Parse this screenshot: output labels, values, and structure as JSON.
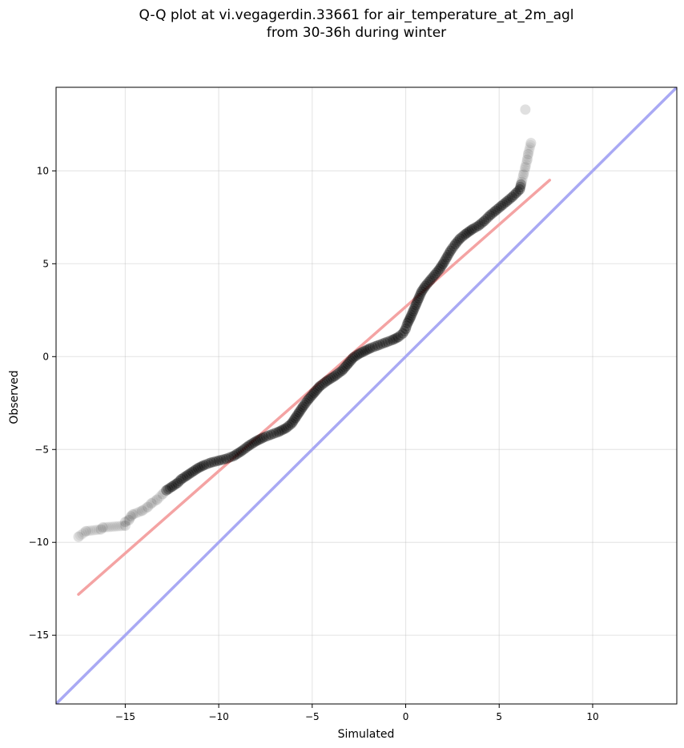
{
  "title_line1": "Q-Q plot at vi.vegagerdin.33661 for air_temperature_at_2m_agl",
  "title_line2": "from 30-36h during winter",
  "chart_data": {
    "type": "scatter",
    "title": "Q-Q plot at vi.vegagerdin.33661 for air_temperature_at_2m_agl\nfrom 30-36h during winter",
    "xlabel": "Simulated",
    "ylabel": "Observed",
    "xlim": [
      -18.7,
      14.5
    ],
    "ylim": [
      -18.7,
      14.5
    ],
    "xticks": [
      -15,
      -10,
      -5,
      0,
      5,
      10
    ],
    "yticks": [
      10,
      5,
      0,
      -5,
      -10,
      -15
    ],
    "xtick_labels": [
      "−15",
      "−10",
      "−5",
      "0",
      "5",
      "10"
    ],
    "ytick_labels": [
      "10",
      "5",
      "0",
      "−5",
      "−10",
      "−15"
    ],
    "grid": true,
    "series": [
      {
        "points": [
          [
            -17.5,
            -9.7
          ],
          [
            -17.1,
            -9.4
          ],
          [
            -16.3,
            -9.3
          ],
          [
            -16.2,
            -9.2
          ],
          [
            -15.0,
            -9.1
          ],
          [
            -15.0,
            -8.9
          ],
          [
            -14.8,
            -8.8
          ],
          [
            -14.7,
            -8.6
          ],
          [
            -14.6,
            -8.5
          ],
          [
            -14.1,
            -8.3
          ],
          [
            -13.8,
            -8.1
          ],
          [
            -13.6,
            -7.9
          ],
          [
            -13.3,
            -7.7
          ],
          [
            -13.0,
            -7.4
          ],
          [
            -12.8,
            -7.2
          ],
          [
            -12.5,
            -7.0
          ],
          [
            -12.2,
            -6.8
          ],
          [
            -12.0,
            -6.6
          ],
          [
            -11.7,
            -6.4
          ],
          [
            -11.4,
            -6.2
          ],
          [
            -11.1,
            -6.0
          ],
          [
            -10.8,
            -5.85
          ],
          [
            -10.4,
            -5.7
          ],
          [
            -10.0,
            -5.6
          ],
          [
            -9.6,
            -5.5
          ],
          [
            -9.2,
            -5.35
          ],
          [
            -8.8,
            -5.1
          ],
          [
            -8.4,
            -4.8
          ],
          [
            -8.0,
            -4.55
          ],
          [
            -7.6,
            -4.35
          ],
          [
            -7.2,
            -4.2
          ],
          [
            -6.8,
            -4.05
          ],
          [
            -6.4,
            -3.85
          ],
          [
            -6.1,
            -3.6
          ],
          [
            -5.9,
            -3.3
          ],
          [
            -5.7,
            -3.0
          ],
          [
            -5.5,
            -2.7
          ],
          [
            -5.2,
            -2.3
          ],
          [
            -4.9,
            -1.95
          ],
          [
            -4.6,
            -1.6
          ],
          [
            -4.2,
            -1.3
          ],
          [
            -3.8,
            -1.05
          ],
          [
            -3.4,
            -0.75
          ],
          [
            -3.1,
            -0.4
          ],
          [
            -2.8,
            -0.05
          ],
          [
            -2.5,
            0.15
          ],
          [
            -2.2,
            0.3
          ],
          [
            -1.9,
            0.45
          ],
          [
            -1.5,
            0.6
          ],
          [
            -1.1,
            0.75
          ],
          [
            -0.7,
            0.9
          ],
          [
            -0.4,
            1.05
          ],
          [
            -0.15,
            1.25
          ],
          [
            0.0,
            1.5
          ],
          [
            0.1,
            1.8
          ],
          [
            0.25,
            2.1
          ],
          [
            0.4,
            2.45
          ],
          [
            0.55,
            2.8
          ],
          [
            0.7,
            3.15
          ],
          [
            0.85,
            3.5
          ],
          [
            1.05,
            3.8
          ],
          [
            1.3,
            4.1
          ],
          [
            1.55,
            4.4
          ],
          [
            1.8,
            4.7
          ],
          [
            2.0,
            5.0
          ],
          [
            2.2,
            5.35
          ],
          [
            2.4,
            5.7
          ],
          [
            2.65,
            6.05
          ],
          [
            2.9,
            6.35
          ],
          [
            3.2,
            6.6
          ],
          [
            3.55,
            6.85
          ],
          [
            3.9,
            7.05
          ],
          [
            4.2,
            7.3
          ],
          [
            4.5,
            7.6
          ],
          [
            4.8,
            7.85
          ],
          [
            5.1,
            8.1
          ],
          [
            5.4,
            8.35
          ],
          [
            5.7,
            8.6
          ],
          [
            5.9,
            8.8
          ],
          [
            6.1,
            9.0
          ],
          [
            6.2,
            9.4
          ],
          [
            6.3,
            9.8
          ],
          [
            6.4,
            10.2
          ],
          [
            6.5,
            10.6
          ],
          [
            6.55,
            10.9
          ],
          [
            6.7,
            11.5
          ],
          [
            6.4,
            13.3
          ]
        ]
      }
    ],
    "fit_line": {
      "x": [
        -17.5,
        7.7
      ],
      "y": [
        -12.8,
        9.5
      ],
      "color": "#f4a3a3"
    },
    "identity_line": {
      "x": [
        -18.7,
        14.5
      ],
      "y": [
        -18.7,
        14.5
      ],
      "color": "#a9a9f4"
    },
    "point_color": "#000000"
  }
}
